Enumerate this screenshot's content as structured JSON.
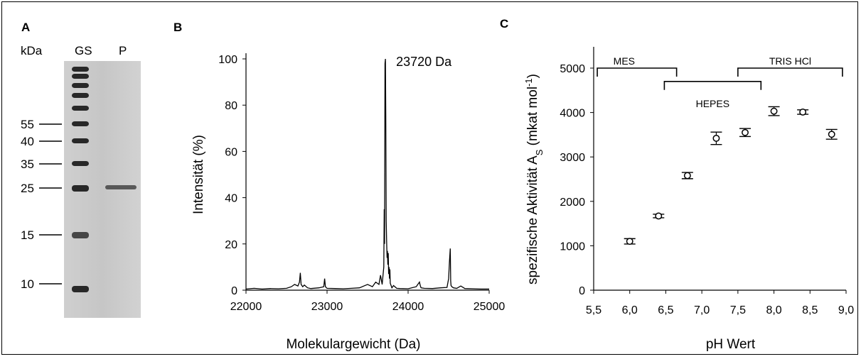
{
  "panels": {
    "a": {
      "label": "A"
    },
    "b": {
      "label": "B"
    },
    "c": {
      "label": "C"
    }
  },
  "gel": {
    "unit_label": "kDa",
    "lane_labels": [
      "GS",
      "P"
    ],
    "marker_labels": [
      "55",
      "40",
      "35",
      "25",
      "15",
      "10"
    ]
  },
  "chart_data": [
    {
      "type": "line",
      "panel": "B",
      "xlabel": "Molekulargewicht (Da)",
      "ylabel": "Intensität (%)",
      "xlim": [
        22000,
        25000
      ],
      "ylim": [
        0,
        100
      ],
      "xticks": [
        "22000",
        "23000",
        "24000",
        "25000"
      ],
      "yticks": [
        "0",
        "20",
        "40",
        "60",
        "80",
        "100"
      ],
      "annotation": "23720 Da",
      "series": [
        {
          "x": [
            22000,
            22100,
            22200,
            22300,
            22400,
            22500,
            22560,
            22600,
            22640,
            22660,
            22670,
            22680,
            22700,
            22720,
            22760,
            22800,
            22900,
            22960,
            22970,
            22980,
            23000,
            23100,
            23200,
            23300,
            23400,
            23500,
            23560,
            23600,
            23640,
            23660,
            23680,
            23700,
            23705,
            23710,
            23715,
            23720,
            23725,
            23730,
            23735,
            23740,
            23745,
            23750,
            23755,
            23760,
            23765,
            23770,
            23775,
            23780,
            23790,
            23800,
            23820,
            23860,
            23900,
            24000,
            24100,
            24140,
            24150,
            24160,
            24200,
            24300,
            24400,
            24480,
            24500,
            24510,
            24520,
            24525,
            24530,
            24540,
            24560,
            24600,
            24650,
            24700,
            24800,
            24900,
            25000
          ],
          "y": [
            0.5,
            0.8,
            0.5,
            0.7,
            0.6,
            0.8,
            1.5,
            2.5,
            1.8,
            3.5,
            7.5,
            2.5,
            1.5,
            2.2,
            1,
            0.7,
            1,
            1.5,
            5,
            1.5,
            0.8,
            0.7,
            0.6,
            0.8,
            1,
            2.5,
            1.5,
            3.5,
            2.5,
            6.5,
            2.5,
            10,
            35,
            20,
            98,
            100,
            76,
            30,
            21,
            14,
            17,
            11,
            16,
            7,
            10,
            5,
            9,
            3,
            2,
            1,
            2,
            0.8,
            0.7,
            0.6,
            1.5,
            3.5,
            2,
            1,
            0.8,
            0.7,
            1,
            1.2,
            5,
            12,
            18,
            4,
            2,
            1.5,
            1,
            0.8,
            1.8,
            0.7,
            0.6,
            0.5,
            0.5
          ]
        }
      ]
    },
    {
      "type": "scatter",
      "panel": "C",
      "xlabel": "pH Wert",
      "ylabel_main": "spezifische Aktivität A",
      "ylabel_sub": "S",
      "ylabel_unit_open": " (mkat mol",
      "ylabel_sup": "-1",
      "ylabel_unit_close": ")",
      "xlim": [
        5.5,
        9.0
      ],
      "ylim": [
        0,
        5000
      ],
      "xticks": [
        "5,5",
        "6,0",
        "6,5",
        "7,0",
        "7,5",
        "8,0",
        "8,5",
        "9,0"
      ],
      "yticks": [
        "0",
        "1000",
        "2000",
        "3000",
        "4000",
        "5000"
      ],
      "buffers": [
        {
          "name": "MES",
          "from": 5.55,
          "to": 6.65,
          "level": 5000
        },
        {
          "name": "HEPES",
          "from": 6.48,
          "to": 7.82,
          "level": 4700
        },
        {
          "name": "TRIS HCl",
          "from": 7.5,
          "to": 8.95,
          "level": 5000
        }
      ],
      "points": [
        {
          "x": 6.0,
          "y": 1100,
          "err": 60
        },
        {
          "x": 6.4,
          "y": 1670,
          "err": 40
        },
        {
          "x": 6.8,
          "y": 2580,
          "err": 70
        },
        {
          "x": 7.2,
          "y": 3420,
          "err": 140
        },
        {
          "x": 7.6,
          "y": 3550,
          "err": 90
        },
        {
          "x": 8.0,
          "y": 4030,
          "err": 100
        },
        {
          "x": 8.4,
          "y": 4010,
          "err": 50
        },
        {
          "x": 8.8,
          "y": 3510,
          "err": 110
        }
      ]
    }
  ]
}
